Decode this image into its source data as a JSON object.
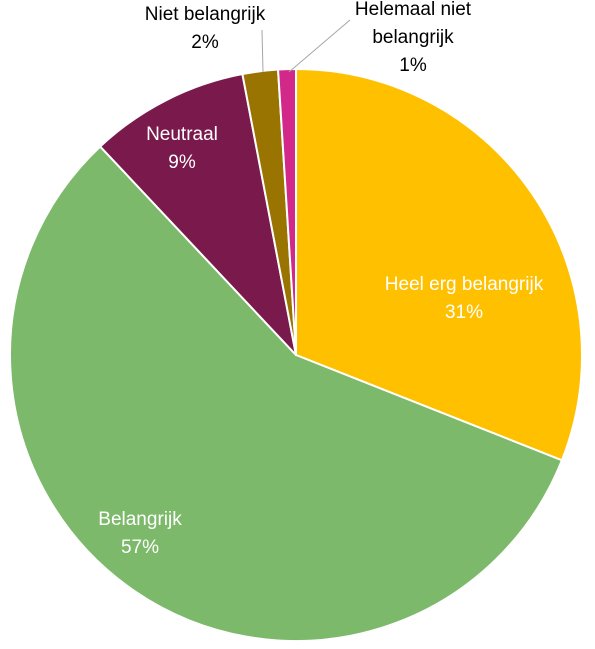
{
  "chart_data": {
    "type": "pie",
    "title": "",
    "slices": [
      {
        "label": "Heel erg belangrijk",
        "value": 31,
        "value_label": "31%",
        "color": "#FFC000",
        "text_color": "#FFFFFF"
      },
      {
        "label": "Belangrijk",
        "value": 57,
        "value_label": "57%",
        "color": "#7DB96A",
        "text_color": "#FFFFFF"
      },
      {
        "label": "Neutraal",
        "value": 9,
        "value_label": "9%",
        "color": "#7A1A4C",
        "text_color": "#FFFFFF"
      },
      {
        "label": "Niet belangrijk",
        "value": 2,
        "value_label": "2%",
        "color": "#9A7400",
        "text_color": "#000000"
      },
      {
        "label": "Helemaal niet belangrijk",
        "value": 1,
        "value_label": "1%",
        "color": "#D1288A",
        "text_color": "#000000"
      }
    ],
    "start": "12 o'clock",
    "direction": "clockwise",
    "legend": "none",
    "label_placement": "inside for large slices, outside with leader lines for small slices"
  }
}
